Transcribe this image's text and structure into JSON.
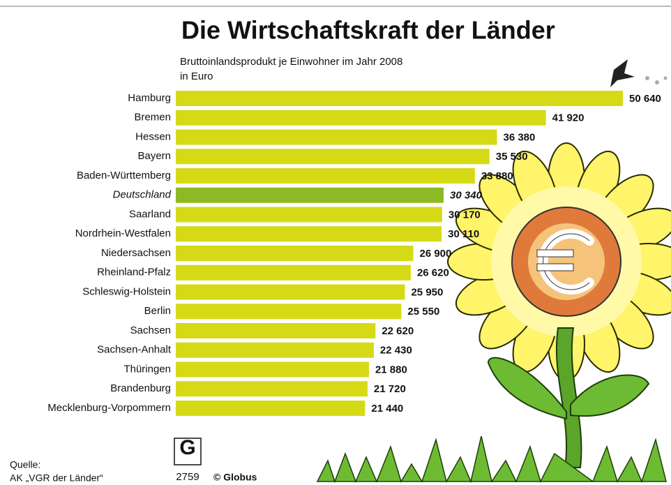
{
  "chart_data": {
    "type": "bar",
    "orientation": "horizontal",
    "title": "Die Wirtschaftskraft der Länder",
    "subtitle": [
      "Bruttoinlandsprodukt je Einwohner im Jahr 2008",
      "in Euro"
    ],
    "categories": [
      "Hamburg",
      "Bremen",
      "Hessen",
      "Bayern",
      "Baden-Württemberg",
      "Deutschland",
      "Saarland",
      "Nordrhein-Westfalen",
      "Niedersachsen",
      "Rheinland-Pfalz",
      "Schleswig-Holstein",
      "Berlin",
      "Sachsen",
      "Sachsen-Anhalt",
      "Thüringen",
      "Brandenburg",
      "Mecklenburg-Vorpommern"
    ],
    "values": [
      50640,
      41920,
      36380,
      35530,
      33880,
      30340,
      30170,
      30110,
      26900,
      26620,
      25950,
      25550,
      22620,
      22430,
      21880,
      21720,
      21440
    ],
    "value_labels": [
      "50 640",
      "41 920",
      "36 380",
      "35 530",
      "33 880",
      "30 340",
      "30 170",
      "30 110",
      "26 900",
      "26 620",
      "25 950",
      "25 550",
      "22 620",
      "22 430",
      "21 880",
      "21 720",
      "21 440"
    ],
    "color": "#d6da16",
    "highlight_color": "#8dba24",
    "highlight_index": 5,
    "source": [
      "Quelle:",
      "AK „VGR der Länder“"
    ],
    "logo": "G",
    "chart_number": "2759",
    "credit": "© Globus"
  }
}
